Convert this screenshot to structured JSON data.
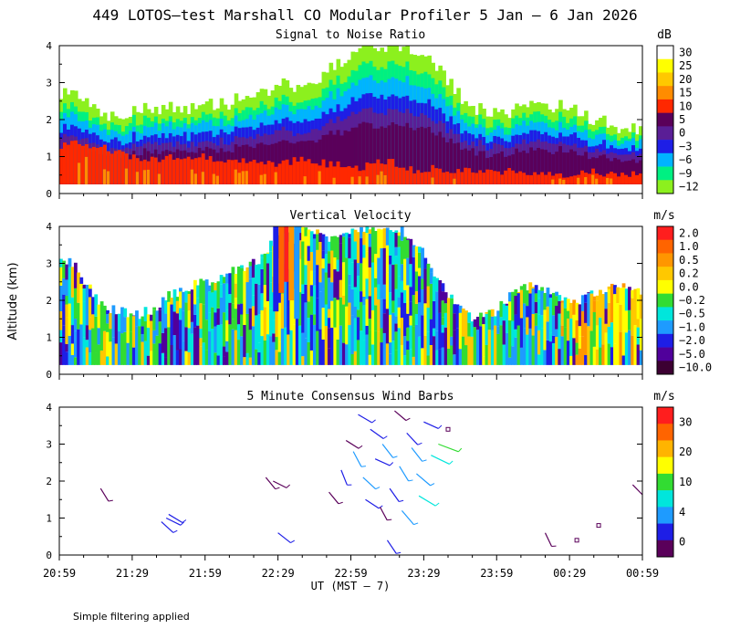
{
  "title": "449 LOTOS—test Marshall CO Modular Profiler  5 Jan —  6 Jan 2026",
  "ylabel": "Altitude (km)",
  "xlabel": "UT  (MST — 7)",
  "footer": "Simple filtering applied",
  "x_ticks": [
    "20:59",
    "21:29",
    "21:59",
    "22:29",
    "22:59",
    "23:29",
    "23:59",
    "00:29",
    "00:59"
  ],
  "y_ticks": [
    "0",
    "1",
    "2",
    "3",
    "4"
  ],
  "chart_data": [
    {
      "type": "heatmap",
      "title": "Signal to Noise Ratio",
      "units": "dB",
      "ylim": [
        0,
        4
      ],
      "xrange": [
        "20:59",
        "00:59"
      ],
      "colorbar": {
        "labels": [
          "30",
          "25",
          "20",
          "15",
          "10",
          "5",
          "0",
          "−3",
          "−6",
          "−9",
          "−12"
        ],
        "colors": [
          "#ffffff",
          "#ffff00",
          "#ffc800",
          "#ff8c00",
          "#ff2800",
          "#5a005a",
          "#5a1e96",
          "#1e1ee6",
          "#00b4ff",
          "#00f082",
          "#8cf01e"
        ]
      },
      "profile_top_km": [
        2.6,
        2.7,
        2.3,
        2.0,
        2.1,
        2.3,
        2.2,
        2.4,
        2.3,
        2.5,
        2.4,
        2.5,
        2.7,
        2.8,
        3.0,
        2.9,
        3.1,
        3.3,
        3.6,
        3.9,
        4.0,
        3.9,
        4.0,
        3.8,
        3.5,
        2.9,
        2.4,
        2.2,
        2.1,
        2.3,
        2.4,
        2.3,
        2.4,
        2.2,
        2.0,
        1.9,
        1.8,
        1.7
      ],
      "strong_echo_top_km": [
        1.3,
        1.4,
        1.3,
        1.2,
        1.1,
        0.9,
        0.9,
        1.0,
        1.0,
        1.0,
        0.9,
        0.8,
        0.9,
        0.8,
        0.8,
        0.9,
        0.9,
        0.8,
        0.8,
        0.7,
        0.8,
        0.9,
        0.7,
        0.6,
        0.7,
        0.6,
        0.6,
        0.6,
        0.6,
        0.6,
        0.5,
        0.6,
        0.5,
        0.5,
        0.6,
        0.5,
        0.5,
        0.6
      ]
    },
    {
      "type": "heatmap",
      "title": "Vertical Velocity",
      "units": "m/s",
      "ylim": [
        0,
        4
      ],
      "xrange": [
        "20:59",
        "00:59"
      ],
      "colorbar": {
        "labels": [
          "2.0",
          "1.0",
          "0.5",
          "0.2",
          "0.0",
          "−0.2",
          "−0.5",
          "−1.0",
          "−2.0",
          "−5.0",
          "−10.0"
        ],
        "colors": [
          "#ff1e1e",
          "#ff6400",
          "#ff9600",
          "#ffc800",
          "#ffff00",
          "#32dc32",
          "#00e6dc",
          "#1e9bff",
          "#1e1ee6",
          "#50009b",
          "#3c0032"
        ]
      },
      "profile_top_km": [
        3.2,
        2.9,
        2.2,
        1.8,
        1.7,
        1.6,
        1.8,
        2.2,
        2.3,
        2.5,
        2.6,
        2.8,
        3.0,
        3.2,
        3.9,
        4.0,
        4.0,
        3.6,
        3.8,
        4.0,
        3.9,
        4.0,
        3.8,
        3.4,
        2.6,
        2.0,
        1.6,
        1.5,
        1.8,
        2.3,
        2.4,
        2.3,
        2.1,
        2.0,
        2.2,
        2.3,
        2.4,
        2.3
      ]
    },
    {
      "type": "scatter",
      "title": "5 Minute Consensus Wind Barbs",
      "units": "m/s",
      "ylim": [
        0,
        4
      ],
      "xrange": [
        "20:59",
        "00:59"
      ],
      "colorbar": {
        "labels": [
          "30",
          "20",
          "10",
          "4",
          "0"
        ],
        "colors": [
          "#ff1e1e",
          "#ff6400",
          "#ffb400",
          "#ffff00",
          "#32dc32",
          "#00e6dc",
          "#1e9bff",
          "#1e1ee6",
          "#5a005a"
        ]
      },
      "barbs": [
        {
          "t_min": 17,
          "alt_km": 1.8,
          "speed": 2
        },
        {
          "t_min": 42,
          "alt_km": 0.9,
          "speed": 3
        },
        {
          "t_min": 44,
          "alt_km": 1.0,
          "speed": 3
        },
        {
          "t_min": 45,
          "alt_km": 1.1,
          "speed": 3
        },
        {
          "t_min": 85,
          "alt_km": 2.1,
          "speed": 2
        },
        {
          "t_min": 88,
          "alt_km": 2.0,
          "speed": 2
        },
        {
          "t_min": 90,
          "alt_km": 0.6,
          "speed": 3
        },
        {
          "t_min": 111,
          "alt_km": 1.7,
          "speed": 2
        },
        {
          "t_min": 116,
          "alt_km": 2.3,
          "speed": 3
        },
        {
          "t_min": 118,
          "alt_km": 3.1,
          "speed": 2
        },
        {
          "t_min": 121,
          "alt_km": 2.8,
          "speed": 4
        },
        {
          "t_min": 123,
          "alt_km": 3.8,
          "speed": 3
        },
        {
          "t_min": 125,
          "alt_km": 2.1,
          "speed": 4
        },
        {
          "t_min": 126,
          "alt_km": 1.5,
          "speed": 3
        },
        {
          "t_min": 128,
          "alt_km": 3.4,
          "speed": 3
        },
        {
          "t_min": 130,
          "alt_km": 2.6,
          "speed": 3
        },
        {
          "t_min": 132,
          "alt_km": 1.3,
          "speed": 2
        },
        {
          "t_min": 133,
          "alt_km": 3.0,
          "speed": 4
        },
        {
          "t_min": 135,
          "alt_km": 0.4,
          "speed": 3
        },
        {
          "t_min": 136,
          "alt_km": 1.8,
          "speed": 3
        },
        {
          "t_min": 138,
          "alt_km": 3.9,
          "speed": 2
        },
        {
          "t_min": 140,
          "alt_km": 2.4,
          "speed": 4
        },
        {
          "t_min": 141,
          "alt_km": 1.2,
          "speed": 5
        },
        {
          "t_min": 143,
          "alt_km": 3.3,
          "speed": 3
        },
        {
          "t_min": 145,
          "alt_km": 2.9,
          "speed": 4
        },
        {
          "t_min": 147,
          "alt_km": 2.2,
          "speed": 5
        },
        {
          "t_min": 148,
          "alt_km": 1.6,
          "speed": 6
        },
        {
          "t_min": 150,
          "alt_km": 3.6,
          "speed": 3
        },
        {
          "t_min": 153,
          "alt_km": 2.7,
          "speed": 7
        },
        {
          "t_min": 156,
          "alt_km": 3.0,
          "speed": 8
        },
        {
          "t_min": 160,
          "alt_km": 3.4,
          "speed": 1
        },
        {
          "t_min": 200,
          "alt_km": 0.6,
          "speed": 2
        },
        {
          "t_min": 213,
          "alt_km": 0.4,
          "speed": 1
        },
        {
          "t_min": 222,
          "alt_km": 0.8,
          "speed": 1
        },
        {
          "t_min": 236,
          "alt_km": 1.9,
          "speed": 2
        }
      ]
    }
  ]
}
